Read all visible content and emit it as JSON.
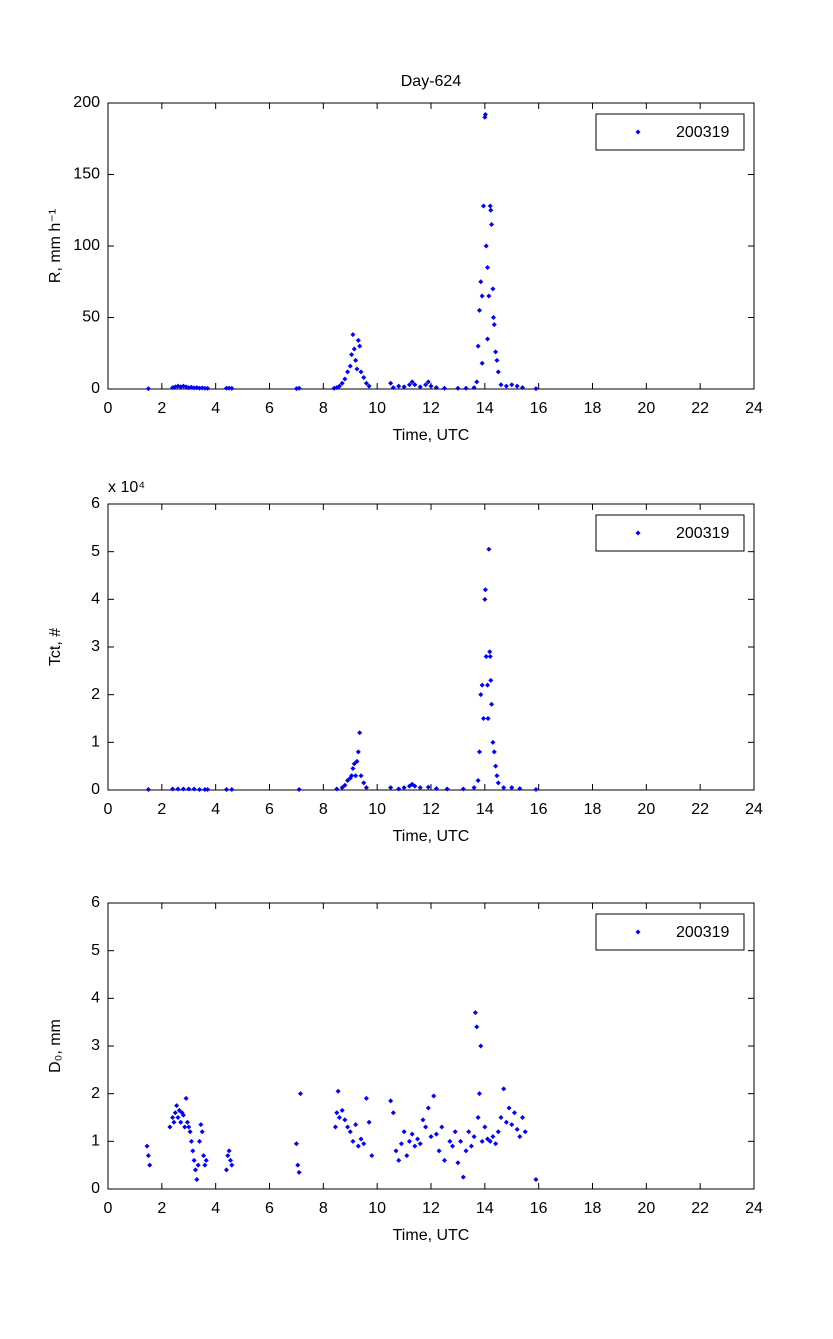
{
  "chart_data": [
    {
      "type": "scatter",
      "title": "Day-624",
      "xlabel": "Time, UTC",
      "ylabel": "R, mm h⁻¹",
      "xlim": [
        0,
        24
      ],
      "xticks": [
        0,
        2,
        4,
        6,
        8,
        10,
        12,
        14,
        16,
        18,
        20,
        22,
        24
      ],
      "ylim": [
        0,
        200
      ],
      "yticks": [
        0,
        50,
        100,
        150,
        200
      ],
      "legend": "upper right",
      "x": [
        1.5,
        2.4,
        2.5,
        2.6,
        2.7,
        2.8,
        2.9,
        3.0,
        3.1,
        3.2,
        3.3,
        3.4,
        3.5,
        3.6,
        3.7,
        4.4,
        4.5,
        4.6,
        7.0,
        7.1,
        8.4,
        8.5,
        8.6,
        8.7,
        8.8,
        8.9,
        9.0,
        9.05,
        9.1,
        9.15,
        9.2,
        9.25,
        9.3,
        9.35,
        9.4,
        9.5,
        9.6,
        9.7,
        10.5,
        10.6,
        10.8,
        11.0,
        11.2,
        11.3,
        11.4,
        11.6,
        11.8,
        11.9,
        12.0,
        12.2,
        12.5,
        13.0,
        13.3,
        13.6,
        13.7,
        13.75,
        13.8,
        13.85,
        13.9,
        13.95,
        14.0,
        14.02,
        14.05,
        14.1,
        14.15,
        14.2,
        14.22,
        14.25,
        14.3,
        14.32,
        14.35,
        14.4,
        14.45,
        14.5,
        14.6,
        14.8,
        15.0,
        15.2,
        15.4,
        15.9,
        13.9,
        14.1
      ],
      "series": [
        {
          "name": "200319",
          "color": "#0000ff",
          "values": [
            0.3,
            1,
            1.5,
            2,
            1.5,
            2,
            1.5,
            1,
            1.2,
            0.8,
            1,
            0.6,
            0.8,
            0.5,
            0.4,
            0.5,
            0.6,
            0.4,
            0.3,
            0.5,
            0.5,
            1,
            2,
            4,
            7,
            12,
            16,
            24,
            38,
            28,
            20,
            14,
            34,
            30,
            12,
            8,
            4,
            2,
            4,
            1,
            2,
            1.5,
            3,
            5,
            3,
            1.5,
            3,
            5,
            2,
            1,
            0.5,
            0.5,
            0.5,
            1,
            5,
            30,
            55,
            75,
            65,
            128,
            190,
            192,
            100,
            85,
            65,
            128,
            125,
            115,
            70,
            50,
            45,
            26,
            20,
            12,
            3,
            2,
            3,
            2,
            1,
            0.3,
            18,
            35
          ]
        }
      ]
    },
    {
      "type": "scatter",
      "xlabel": "Time, UTC",
      "ylabel": "Tct, #",
      "annotation": "x 10⁴",
      "xlim": [
        0,
        24
      ],
      "xticks": [
        0,
        2,
        4,
        6,
        8,
        10,
        12,
        14,
        16,
        18,
        20,
        22,
        24
      ],
      "ylim": [
        0,
        6
      ],
      "yticks": [
        0,
        1,
        2,
        3,
        4,
        5,
        6
      ],
      "legend": "upper right",
      "x": [
        1.5,
        2.4,
        2.6,
        2.8,
        3.0,
        3.2,
        3.4,
        3.6,
        3.7,
        4.4,
        4.6,
        7.1,
        8.5,
        8.7,
        8.8,
        8.9,
        9.0,
        9.05,
        9.1,
        9.15,
        9.2,
        9.25,
        9.3,
        9.35,
        9.4,
        9.5,
        9.6,
        10.5,
        10.8,
        11.0,
        11.2,
        11.3,
        11.4,
        11.6,
        11.9,
        12.2,
        12.6,
        13.2,
        13.6,
        13.75,
        13.8,
        13.85,
        13.9,
        13.95,
        14.0,
        14.02,
        14.05,
        14.1,
        14.12,
        14.15,
        14.18,
        14.2,
        14.22,
        14.25,
        14.3,
        14.35,
        14.4,
        14.45,
        14.5,
        14.7,
        15.0,
        15.3,
        15.9
      ],
      "series": [
        {
          "name": "200319",
          "color": "#0000ff",
          "values": [
            0.01,
            0.02,
            0.02,
            0.02,
            0.02,
            0.02,
            0.01,
            0.01,
            0.01,
            0.01,
            0.01,
            0.01,
            0.02,
            0.05,
            0.1,
            0.2,
            0.25,
            0.3,
            0.45,
            0.55,
            0.3,
            0.6,
            0.8,
            1.2,
            0.3,
            0.15,
            0.05,
            0.05,
            0.02,
            0.05,
            0.08,
            0.12,
            0.08,
            0.05,
            0.06,
            0.03,
            0.02,
            0.02,
            0.05,
            0.2,
            0.8,
            2.0,
            2.2,
            1.5,
            4.0,
            4.2,
            2.8,
            2.2,
            1.5,
            5.05,
            2.9,
            2.8,
            2.3,
            1.8,
            1.0,
            0.8,
            0.5,
            0.3,
            0.15,
            0.05,
            0.05,
            0.03,
            0.01
          ]
        }
      ]
    },
    {
      "type": "scatter",
      "xlabel": "Time, UTC",
      "ylabel": "D₀, mm",
      "xlim": [
        0,
        24
      ],
      "xticks": [
        0,
        2,
        4,
        6,
        8,
        10,
        12,
        14,
        16,
        18,
        20,
        22,
        24
      ],
      "ylim": [
        0,
        6
      ],
      "yticks": [
        0,
        1,
        2,
        3,
        4,
        5,
        6
      ],
      "legend": "upper right",
      "x": [
        1.45,
        1.5,
        1.55,
        2.3,
        2.4,
        2.45,
        2.5,
        2.55,
        2.6,
        2.65,
        2.7,
        2.75,
        2.8,
        2.85,
        2.9,
        2.95,
        3.0,
        3.05,
        3.1,
        3.15,
        3.2,
        3.25,
        3.3,
        3.35,
        3.4,
        3.45,
        3.5,
        3.55,
        3.6,
        3.65,
        4.4,
        4.45,
        4.5,
        4.55,
        4.6,
        7.0,
        7.05,
        7.1,
        7.15,
        8.45,
        8.5,
        8.55,
        8.6,
        8.7,
        8.8,
        8.9,
        9.0,
        9.1,
        9.2,
        9.3,
        9.4,
        9.5,
        9.6,
        9.7,
        9.8,
        10.5,
        10.6,
        10.7,
        10.8,
        10.9,
        11.0,
        11.1,
        11.2,
        11.3,
        11.4,
        11.5,
        11.6,
        11.7,
        11.8,
        11.9,
        12.0,
        12.1,
        12.2,
        12.3,
        12.4,
        12.5,
        12.7,
        12.8,
        12.9,
        13.0,
        13.1,
        13.2,
        13.3,
        13.4,
        13.5,
        13.6,
        13.65,
        13.7,
        13.75,
        13.8,
        13.85,
        13.9,
        14.0,
        14.1,
        14.2,
        14.3,
        14.4,
        14.5,
        14.6,
        14.7,
        14.8,
        14.9,
        15.0,
        15.1,
        15.2,
        15.3,
        15.4,
        15.5,
        15.9
      ],
      "series": [
        {
          "name": "200319",
          "color": "#0000ff",
          "values": [
            0.9,
            0.7,
            0.5,
            1.3,
            1.5,
            1.4,
            1.6,
            1.75,
            1.5,
            1.65,
            1.4,
            1.6,
            1.55,
            1.3,
            1.9,
            1.4,
            1.3,
            1.2,
            1.0,
            0.8,
            0.6,
            0.4,
            0.2,
            0.5,
            1.0,
            1.35,
            1.2,
            0.7,
            0.5,
            0.6,
            0.4,
            0.7,
            0.8,
            0.6,
            0.5,
            0.95,
            0.5,
            0.35,
            2.0,
            1.3,
            1.6,
            2.05,
            1.5,
            1.65,
            1.45,
            1.3,
            1.2,
            1.0,
            1.35,
            0.9,
            1.05,
            0.95,
            1.9,
            1.4,
            0.7,
            1.85,
            1.6,
            0.8,
            0.6,
            0.95,
            1.2,
            0.7,
            1.0,
            1.15,
            0.9,
            1.05,
            0.95,
            1.45,
            1.3,
            1.7,
            1.1,
            1.95,
            1.15,
            0.8,
            1.3,
            0.6,
            1.0,
            0.9,
            1.2,
            0.55,
            1.0,
            0.25,
            0.8,
            1.2,
            0.9,
            1.1,
            3.7,
            3.4,
            1.5,
            2.0,
            3.0,
            1.0,
            1.3,
            1.05,
            1.0,
            1.1,
            0.95,
            1.2,
            1.5,
            2.1,
            1.4,
            1.7,
            1.35,
            1.6,
            1.25,
            1.1,
            1.5,
            1.2,
            0.2
          ]
        }
      ]
    }
  ]
}
